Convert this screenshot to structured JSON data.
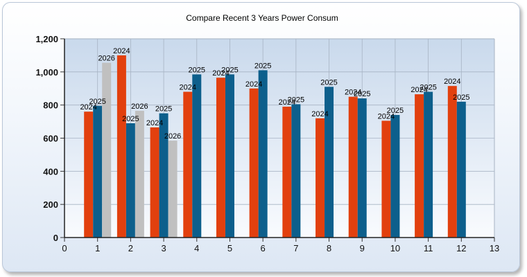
{
  "chart_data": {
    "type": "bar",
    "title": "Compare Recent 3 Years Power Consum",
    "xlabel": "",
    "ylabel": "",
    "xlim": [
      0,
      13
    ],
    "ylim": [
      0,
      1200
    ],
    "x_ticks": [
      "0",
      "1",
      "2",
      "3",
      "4",
      "5",
      "6",
      "7",
      "8",
      "9",
      "10",
      "11",
      "12",
      "13"
    ],
    "y_ticks": [
      "0",
      "200",
      "400",
      "600",
      "800",
      "1,000",
      "1,200"
    ],
    "y_tick_values": [
      0,
      200,
      400,
      600,
      800,
      1000,
      1200
    ],
    "grid": true,
    "legend": "none",
    "categories": [
      1,
      2,
      3,
      4,
      5,
      6,
      7,
      8,
      9,
      10,
      11,
      12
    ],
    "series": [
      {
        "label": "2024",
        "color": "#e2400e",
        "values": [
          760,
          1100,
          665,
          880,
          965,
          900,
          790,
          720,
          850,
          705,
          865,
          915
        ]
      },
      {
        "label": "2025",
        "color": "#0d5f8c",
        "values": [
          795,
          690,
          750,
          985,
          985,
          1010,
          805,
          910,
          840,
          740,
          880,
          820
        ]
      },
      {
        "label": "2026",
        "color": "#c0c0c0",
        "values": [
          1055,
          765,
          585,
          null,
          null,
          null,
          null,
          null,
          null,
          null,
          null,
          null
        ]
      }
    ]
  }
}
